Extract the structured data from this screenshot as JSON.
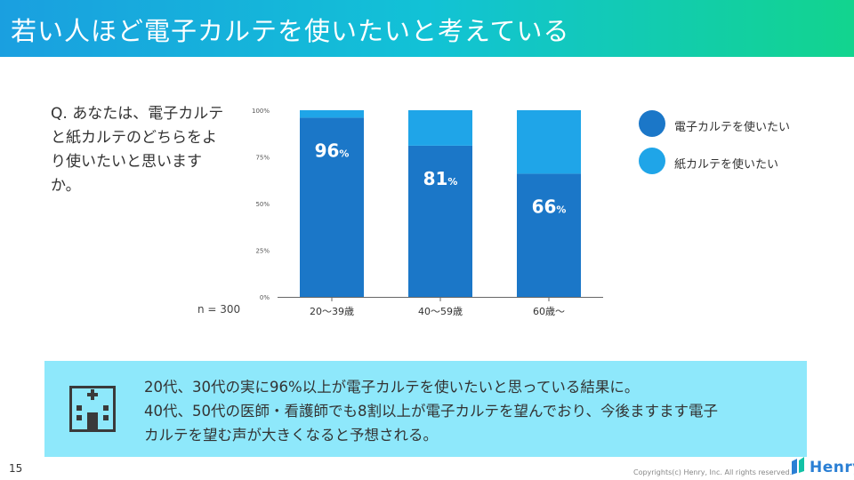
{
  "header": {
    "title": "若い人ほど電子カルテを使いたいと考えている"
  },
  "question": "Q. あなたは、電子カルテと紙カルテのどちらをより使いたいと思いますか。",
  "sample_size": "n = 300",
  "legend": [
    {
      "label": "電子カルテを使いたい",
      "color": "#1b77c8"
    },
    {
      "label": "紙カルテを使いたい",
      "color": "#1fa5e8"
    }
  ],
  "chart_data": {
    "type": "bar",
    "stacked": true,
    "categories": [
      "20〜39歳",
      "40〜59歳",
      "60歳〜"
    ],
    "series": [
      {
        "name": "電子カルテを使いたい",
        "values": [
          96,
          81,
          66
        ],
        "color": "#1b77c8"
      },
      {
        "name": "紙カルテを使いたい",
        "values": [
          4,
          19,
          34
        ],
        "color": "#1fa5e8"
      }
    ],
    "data_labels": [
      {
        "value": "96",
        "unit": "%"
      },
      {
        "value": "81",
        "unit": "%"
      },
      {
        "value": "66",
        "unit": "%"
      }
    ],
    "y_ticks": [
      "0%",
      "25%",
      "50%",
      "75%",
      "100%"
    ],
    "ylim": [
      0,
      100
    ],
    "xlabel": "",
    "ylabel": ""
  },
  "callout": {
    "icon": "hospital-icon",
    "lines": [
      "20代、30代の実に96%以上が電子カルテを使いたいと思っている結果に。",
      "40代、50代の医師・看護師でも8割以上が電子カルテを望んでおり、今後ますます電子",
      "カルテを望む声が大きくなると予想される。"
    ]
  },
  "footer": {
    "page_number": "15",
    "copyright": "Copyrights(c) Henry, Inc. All rights reserved.",
    "brand": "Henry"
  }
}
